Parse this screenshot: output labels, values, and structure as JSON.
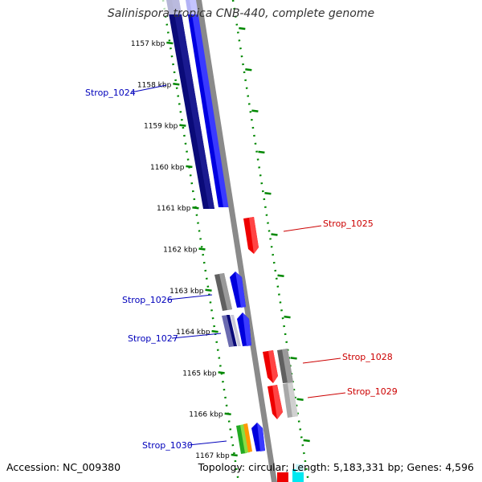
{
  "title": "Salinispora tropica CNB-440, complete genome",
  "footer": {
    "accession": "Accession: NC_009380",
    "topology": "Topology: circular; Length: 5,183,331 bp; Genes: 4,596"
  },
  "colors": {
    "forward_label": "#0000bb",
    "reverse_label": "#cc0000",
    "backbone": "#8a8a8a",
    "tick": "#008800"
  },
  "ticks": [
    "1157 kbp",
    "1158 kbp",
    "1159 kbp",
    "1160 kbp",
    "1161 kbp",
    "1162 kbp",
    "1163 kbp",
    "1164 kbp",
    "1165 kbp",
    "1166 kbp",
    "1167 kbp"
  ],
  "gene_labels": [
    {
      "id": "Strop_1024",
      "side": "left"
    },
    {
      "id": "Strop_1025",
      "side": "right"
    },
    {
      "id": "Strop_1026",
      "side": "left"
    },
    {
      "id": "Strop_1027",
      "side": "left"
    },
    {
      "id": "Strop_1028",
      "side": "right"
    },
    {
      "id": "Strop_1029",
      "side": "right"
    },
    {
      "id": "Strop_1030",
      "side": "left"
    }
  ]
}
